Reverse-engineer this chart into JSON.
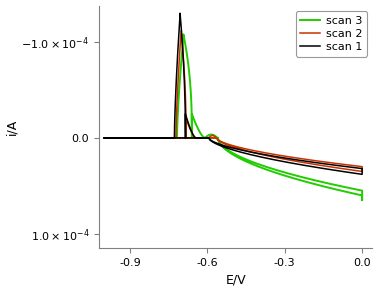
{
  "title": "",
  "xlabel": "E/V",
  "ylabel": "i/A",
  "xlim": [
    -1.02,
    0.04
  ],
  "ylim": [
    0.000115,
    -0.000138
  ],
  "legend": [
    "scan 1",
    "scan 2",
    "scan 3"
  ],
  "colors": [
    "black",
    "#c83200",
    "#22cc00"
  ],
  "linewidths": [
    1.1,
    1.1,
    1.4
  ],
  "ytick_labels": [
    "-1.0x10⁻⁴",
    "0.0",
    "1.0x10⁻⁴"
  ],
  "ytick_vals": [
    -0.0001,
    0.0,
    0.0001
  ],
  "xticks": [
    -0.9,
    -0.6,
    -0.3,
    0.0
  ]
}
